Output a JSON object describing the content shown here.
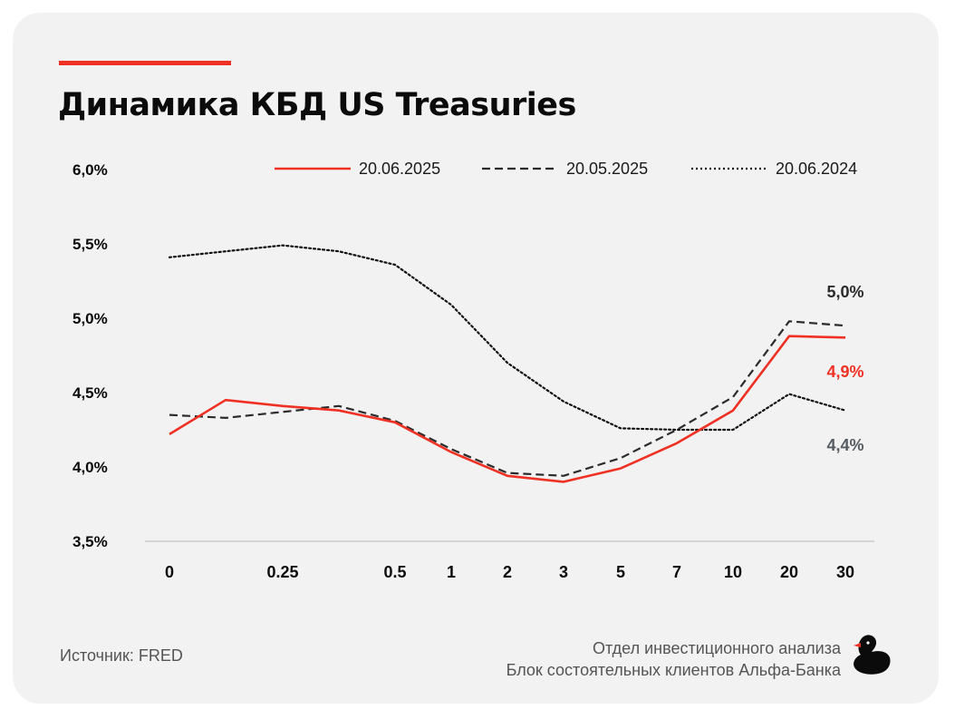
{
  "title": "Динамика КБД US Treasuries",
  "source": "Источник: FRED",
  "credits": {
    "line1": "Отдел инвестиционного анализа",
    "line2": "Блок состоятельных клиентов Альфа-Банка"
  },
  "colors": {
    "accent": "#ef3124",
    "dark": "#2b2b2b",
    "grey": "#555b60",
    "card": "#f2f2f3"
  },
  "chart_data": {
    "type": "line",
    "categories": [
      "0",
      "",
      "0.25",
      "",
      "0.5",
      "1",
      "2",
      "3",
      "5",
      "7",
      "10",
      "20",
      "30"
    ],
    "ylim": [
      3.5,
      6.0
    ],
    "yticks": [
      {
        "v": 6.0,
        "label": "6,0%"
      },
      {
        "v": 5.5,
        "label": "5,5%"
      },
      {
        "v": 5.0,
        "label": "5,0%"
      },
      {
        "v": 4.5,
        "label": "4,5%"
      },
      {
        "v": 4.0,
        "label": "4,0%"
      },
      {
        "v": 3.5,
        "label": "3,5%"
      }
    ],
    "grid": false,
    "legend": "top",
    "series": [
      {
        "name": "20.06.2025",
        "style": "solid",
        "color": "#ef3124",
        "values": [
          4.22,
          4.45,
          4.41,
          4.38,
          4.3,
          4.1,
          3.94,
          3.9,
          3.99,
          4.16,
          4.38,
          4.88,
          4.87
        ],
        "end_label": "4,9%",
        "end_label_color": "#ef3124"
      },
      {
        "name": "20.05.2025",
        "style": "dashed",
        "color": "#2b2b2b",
        "values": [
          4.35,
          4.33,
          4.37,
          4.41,
          4.31,
          4.12,
          3.96,
          3.94,
          4.06,
          4.25,
          4.47,
          4.98,
          4.95
        ],
        "end_label": "5,0%",
        "end_label_color": "#2b2b2b"
      },
      {
        "name": "20.06.2024",
        "style": "dotted",
        "color": "#111111",
        "values": [
          5.41,
          5.45,
          5.49,
          5.45,
          5.36,
          5.09,
          4.7,
          4.44,
          4.26,
          4.25,
          4.25,
          4.49,
          4.38
        ],
        "end_label": "4,4%",
        "end_label_color": "#555b60"
      }
    ]
  }
}
